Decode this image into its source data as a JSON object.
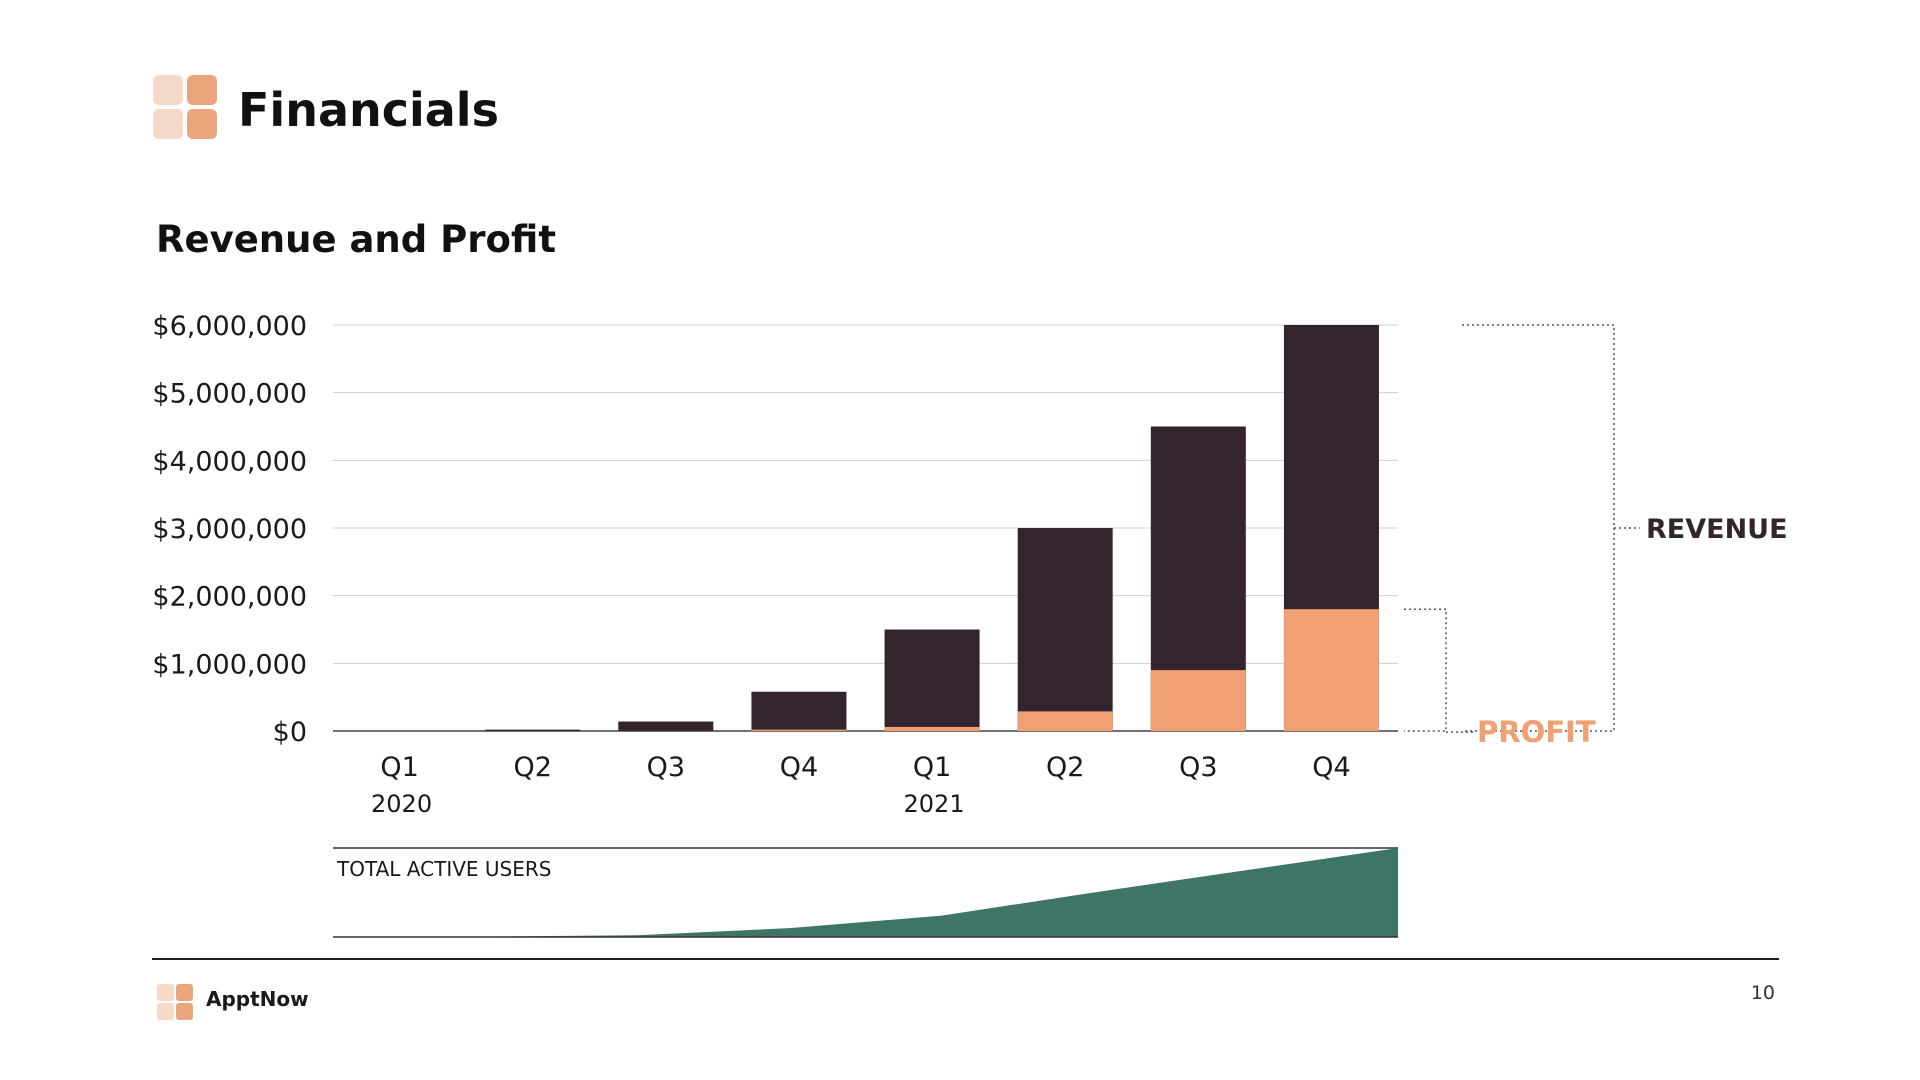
{
  "header": {
    "title": "Financials"
  },
  "footer": {
    "brand": "ApptNow",
    "page_number": "10"
  },
  "colors": {
    "revenue": "#33242e",
    "profit": "#f0a072",
    "users_area": "#3e7569",
    "logo_light": "#f5d9c8",
    "logo_dark": "#eba57d"
  },
  "chart_data": {
    "type": "bar",
    "title": "Revenue and Profit",
    "categories": [
      "Q1",
      "Q2",
      "Q3",
      "Q4",
      "Q1",
      "Q2",
      "Q3",
      "Q4"
    ],
    "years": [
      "2020",
      "",
      "",
      "",
      "2021",
      "",
      "",
      ""
    ],
    "series": [
      {
        "name": "REVENUE",
        "values": [
          0,
          20000,
          140000,
          580000,
          1500000,
          3000000,
          4500000,
          6000000
        ]
      },
      {
        "name": "PROFIT",
        "values": [
          0,
          0,
          0,
          20000,
          60000,
          290000,
          900000,
          1800000
        ]
      }
    ],
    "y_ticks": [
      0,
      1000000,
      2000000,
      3000000,
      4000000,
      5000000,
      6000000
    ],
    "y_tick_labels": [
      "$0",
      "$1,000,000",
      "$2,000,000",
      "$3,000,000",
      "$4,000,000",
      "$5,000,000",
      "$6,000,000"
    ],
    "ylim": [
      0,
      6000000
    ],
    "grid": true,
    "legend": "bracket labels on the right",
    "users_chart": {
      "type": "area",
      "label": "TOTAL ACTIVE USERS",
      "relative_values": [
        0,
        0.005,
        0.02,
        0.1,
        0.24,
        0.5,
        0.75,
        1.0
      ]
    }
  }
}
